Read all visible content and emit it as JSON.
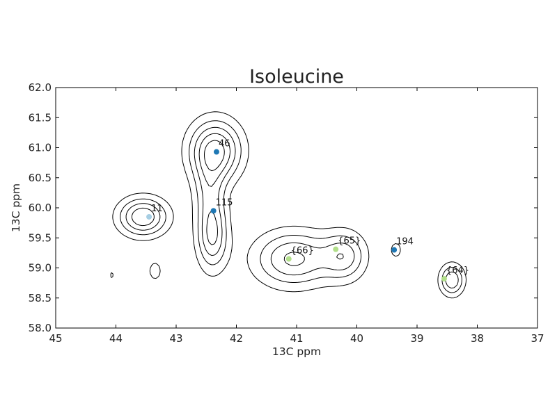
{
  "chart_data": {
    "type": "scatter",
    "title": "Isoleucine",
    "xlabel": "13C ppm",
    "ylabel": "13C ppm",
    "xlim": [
      45,
      37
    ],
    "ylim": [
      62.0,
      58.0
    ],
    "x_reversed": true,
    "y_reversed": true,
    "x_ticks": [
      "45",
      "44",
      "43",
      "42",
      "41",
      "40",
      "39",
      "38",
      "37"
    ],
    "y_ticks": [
      "58.0",
      "58.5",
      "59.0",
      "59.5",
      "60.0",
      "60.5",
      "61.0",
      "61.5",
      "62.0"
    ],
    "grid": false,
    "points": [
      {
        "label": "11",
        "x": 43.45,
        "y": 59.85,
        "color": "#a6cee3"
      },
      {
        "label": "115",
        "x": 42.38,
        "y": 59.95,
        "color": "#1f78b4"
      },
      {
        "label": "46",
        "x": 42.33,
        "y": 60.93,
        "color": "#1f78b4"
      },
      {
        "label": "{66}",
        "x": 41.13,
        "y": 59.15,
        "color": "#b2df8a"
      },
      {
        "label": "{65}",
        "x": 40.35,
        "y": 59.31,
        "color": "#b2df8a"
      },
      {
        "label": "194",
        "x": 39.38,
        "y": 59.3,
        "color": "#1f78b4"
      },
      {
        "label": "{64}",
        "x": 38.55,
        "y": 58.82,
        "color": "#b2df8a"
      }
    ],
    "contour_peaks": [
      {
        "x": 43.55,
        "y": 59.85,
        "sx": 0.28,
        "sy": 0.22,
        "a": 1.0
      },
      {
        "x": 42.4,
        "y": 59.55,
        "sx": 0.18,
        "sy": 0.4,
        "a": 0.85
      },
      {
        "x": 42.35,
        "y": 60.95,
        "sx": 0.3,
        "sy": 0.35,
        "a": 1.1
      },
      {
        "x": 42.45,
        "y": 60.3,
        "sx": 0.18,
        "sy": 0.35,
        "a": 0.45
      },
      {
        "x": 41.05,
        "y": 59.15,
        "sx": 0.45,
        "sy": 0.32,
        "a": 0.85
      },
      {
        "x": 40.2,
        "y": 59.2,
        "sx": 0.25,
        "sy": 0.28,
        "a": 0.65
      },
      {
        "x": 38.42,
        "y": 58.8,
        "sx": 0.14,
        "sy": 0.18,
        "a": 0.8
      },
      {
        "x": 39.35,
        "y": 59.3,
        "sx": 0.07,
        "sy": 0.1,
        "a": 0.35
      },
      {
        "x": 43.35,
        "y": 58.95,
        "sx": 0.08,
        "sy": 0.12,
        "a": 0.35
      },
      {
        "x": 44.06,
        "y": 58.88,
        "sx": 0.03,
        "sy": 0.06,
        "a": 0.3
      }
    ],
    "contour_levels": [
      0.2,
      0.4,
      0.6,
      0.8,
      1.0
    ]
  }
}
